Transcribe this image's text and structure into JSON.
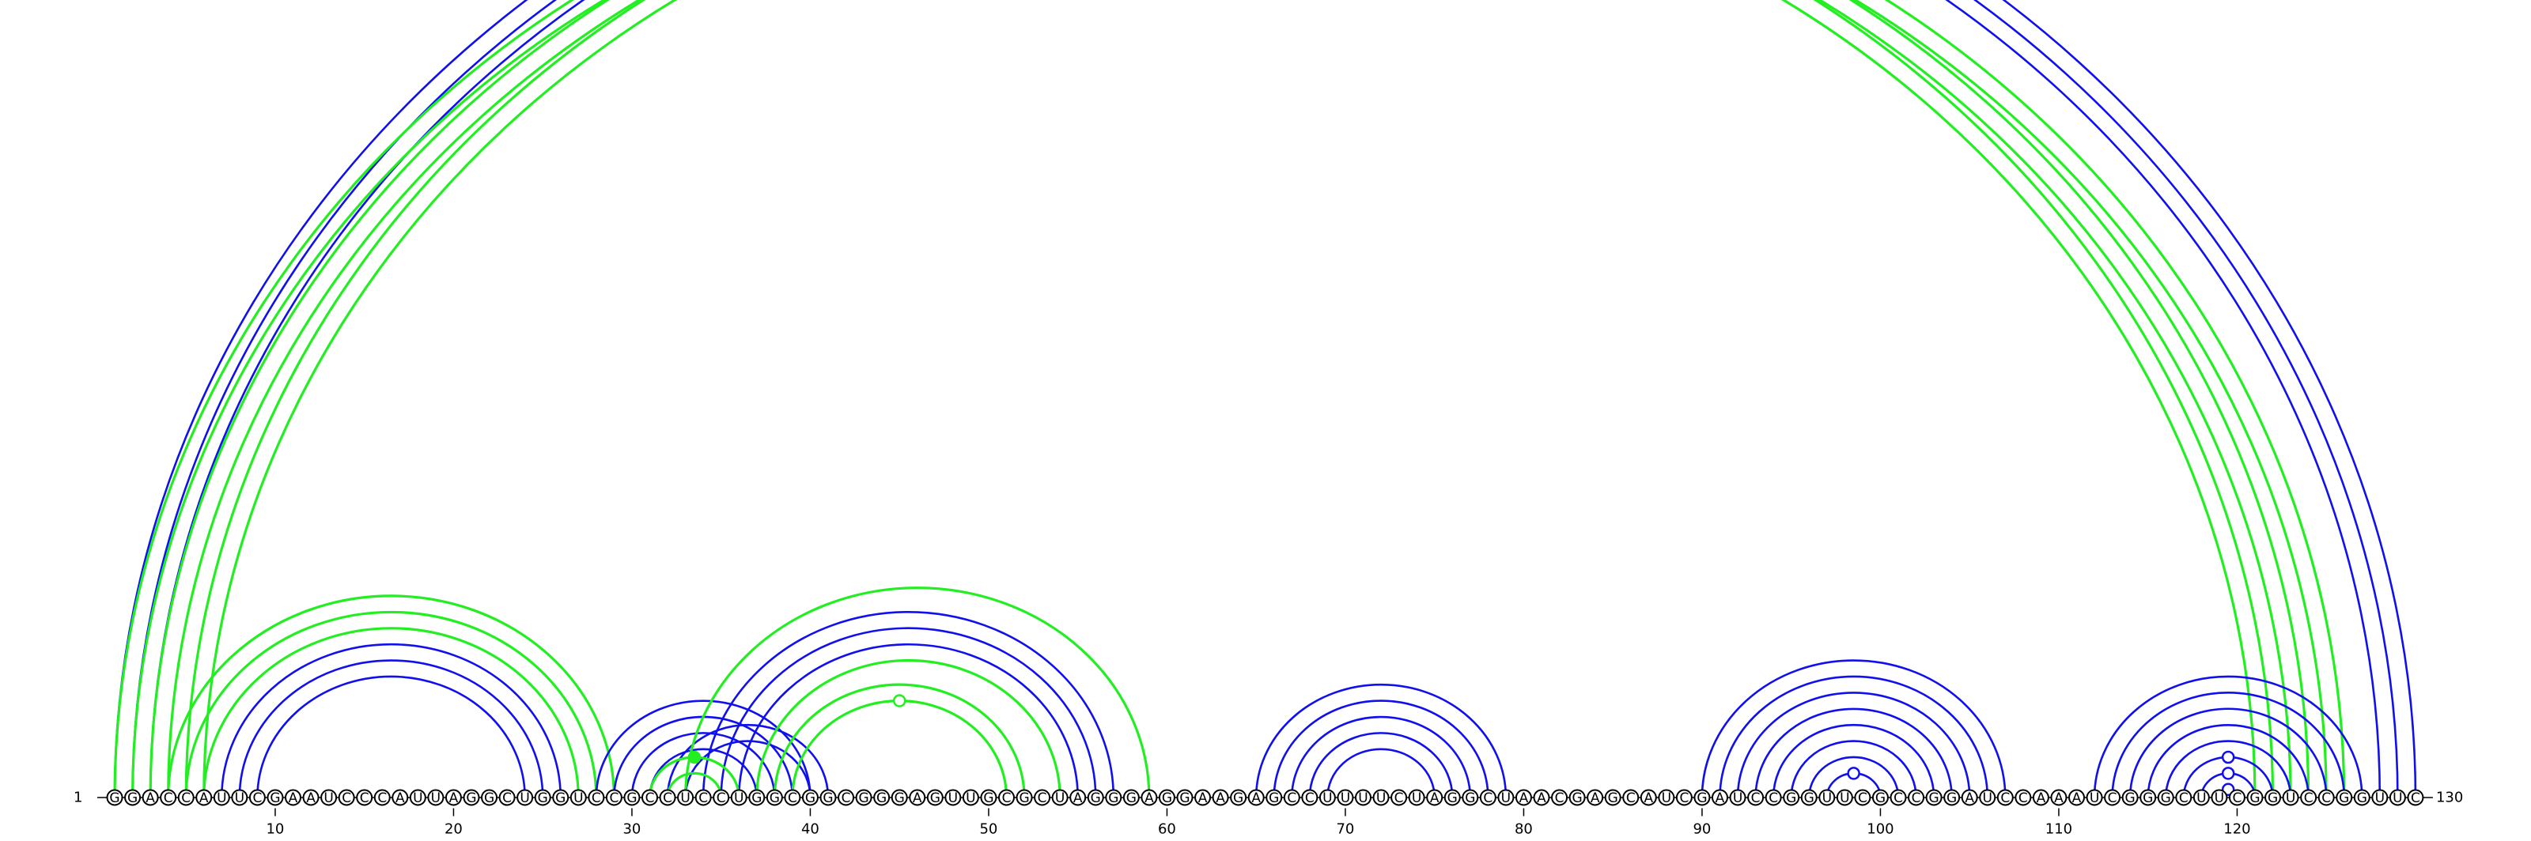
{
  "sequence": "GGACCAUUCGAAUCCCAUUAGGCUGGUCCGCCUCCUGGCGGCGGGAGUUGCGCUAGGGAGGAAGAGCCUUUUCUAGGCUAACGAGCAUCGAUCCGGUUCGCCGGAUCCAAAUCGGGCUUCGGUCCGGUUC",
  "start_label": "1",
  "end_label": "130",
  "tick_labels": [
    "10",
    "20",
    "30",
    "40",
    "50",
    "60",
    "70",
    "80",
    "90",
    "100",
    "110",
    "120"
  ],
  "colors": {
    "blue": "#1010ee",
    "green": "#22ee22"
  },
  "icons": [
    "open-circle-marker",
    "filled-circle-marker"
  ],
  "arcs": [
    {
      "i": 1,
      "j": 130,
      "color": "blue"
    },
    {
      "i": 2,
      "j": 129,
      "color": "blue"
    },
    {
      "i": 3,
      "j": 128,
      "color": "blue"
    },
    {
      "i": 1,
      "j": 122,
      "color": "green"
    },
    {
      "i": 2,
      "j": 121,
      "color": "green"
    },
    {
      "i": 3,
      "j": 124,
      "color": "green"
    },
    {
      "i": 4,
      "j": 123,
      "color": "green"
    },
    {
      "i": 5,
      "j": 126,
      "color": "green"
    },
    {
      "i": 6,
      "j": 125,
      "color": "green"
    },
    {
      "i": 4,
      "j": 29,
      "color": "green"
    },
    {
      "i": 5,
      "j": 28,
      "color": "green"
    },
    {
      "i": 6,
      "j": 27,
      "color": "green"
    },
    {
      "i": 7,
      "j": 26,
      "color": "blue"
    },
    {
      "i": 8,
      "j": 25,
      "color": "blue"
    },
    {
      "i": 9,
      "j": 24,
      "color": "blue"
    },
    {
      "i": 28,
      "j": 40,
      "color": "blue"
    },
    {
      "i": 29,
      "j": 39,
      "color": "blue"
    },
    {
      "i": 30,
      "j": 38,
      "color": "blue"
    },
    {
      "i": 31,
      "j": 37,
      "color": "blue"
    },
    {
      "i": 32,
      "j": 41,
      "color": "blue"
    },
    {
      "i": 33,
      "j": 40,
      "color": "blue"
    },
    {
      "i": 34,
      "j": 57,
      "color": "blue"
    },
    {
      "i": 35,
      "j": 56,
      "color": "blue"
    },
    {
      "i": 36,
      "j": 55,
      "color": "blue"
    },
    {
      "i": 33,
      "j": 59,
      "color": "green"
    },
    {
      "i": 37,
      "j": 54,
      "color": "green"
    },
    {
      "i": 38,
      "j": 52,
      "color": "green"
    },
    {
      "i": 39,
      "j": 51,
      "color": "green"
    },
    {
      "i": 31,
      "j": 36,
      "color": "green"
    },
    {
      "i": 32,
      "j": 35,
      "color": "green"
    },
    {
      "i": 65,
      "j": 79,
      "color": "blue"
    },
    {
      "i": 66,
      "j": 78,
      "color": "blue"
    },
    {
      "i": 67,
      "j": 77,
      "color": "blue"
    },
    {
      "i": 68,
      "j": 76,
      "color": "blue"
    },
    {
      "i": 69,
      "j": 75,
      "color": "blue"
    },
    {
      "i": 90,
      "j": 107,
      "color": "blue"
    },
    {
      "i": 91,
      "j": 106,
      "color": "blue"
    },
    {
      "i": 92,
      "j": 105,
      "color": "blue"
    },
    {
      "i": 93,
      "j": 104,
      "color": "blue"
    },
    {
      "i": 94,
      "j": 103,
      "color": "blue"
    },
    {
      "i": 95,
      "j": 102,
      "color": "blue"
    },
    {
      "i": 96,
      "j": 101,
      "color": "blue"
    },
    {
      "i": 97,
      "j": 100,
      "color": "blue"
    },
    {
      "i": 112,
      "j": 127,
      "color": "blue"
    },
    {
      "i": 113,
      "j": 126,
      "color": "blue"
    },
    {
      "i": 114,
      "j": 125,
      "color": "blue"
    },
    {
      "i": 115,
      "j": 124,
      "color": "blue"
    },
    {
      "i": 116,
      "j": 123,
      "color": "blue"
    },
    {
      "i": 117,
      "j": 122,
      "color": "blue"
    },
    {
      "i": 118,
      "j": 121,
      "color": "blue"
    }
  ],
  "markers": [
    {
      "over": "1-130",
      "type": "open",
      "color": "blue"
    },
    {
      "over": "39-51",
      "type": "open",
      "color": "green"
    },
    {
      "over": "31-36",
      "type": "filled",
      "color": "green"
    },
    {
      "over": "117-122",
      "type": "open",
      "color": "blue"
    },
    {
      "over": "118-121",
      "type": "open",
      "color": "blue"
    },
    {
      "over": "119-120",
      "type": "open",
      "color": "blue"
    },
    {
      "over": "97-100",
      "type": "open",
      "color": "blue"
    }
  ]
}
